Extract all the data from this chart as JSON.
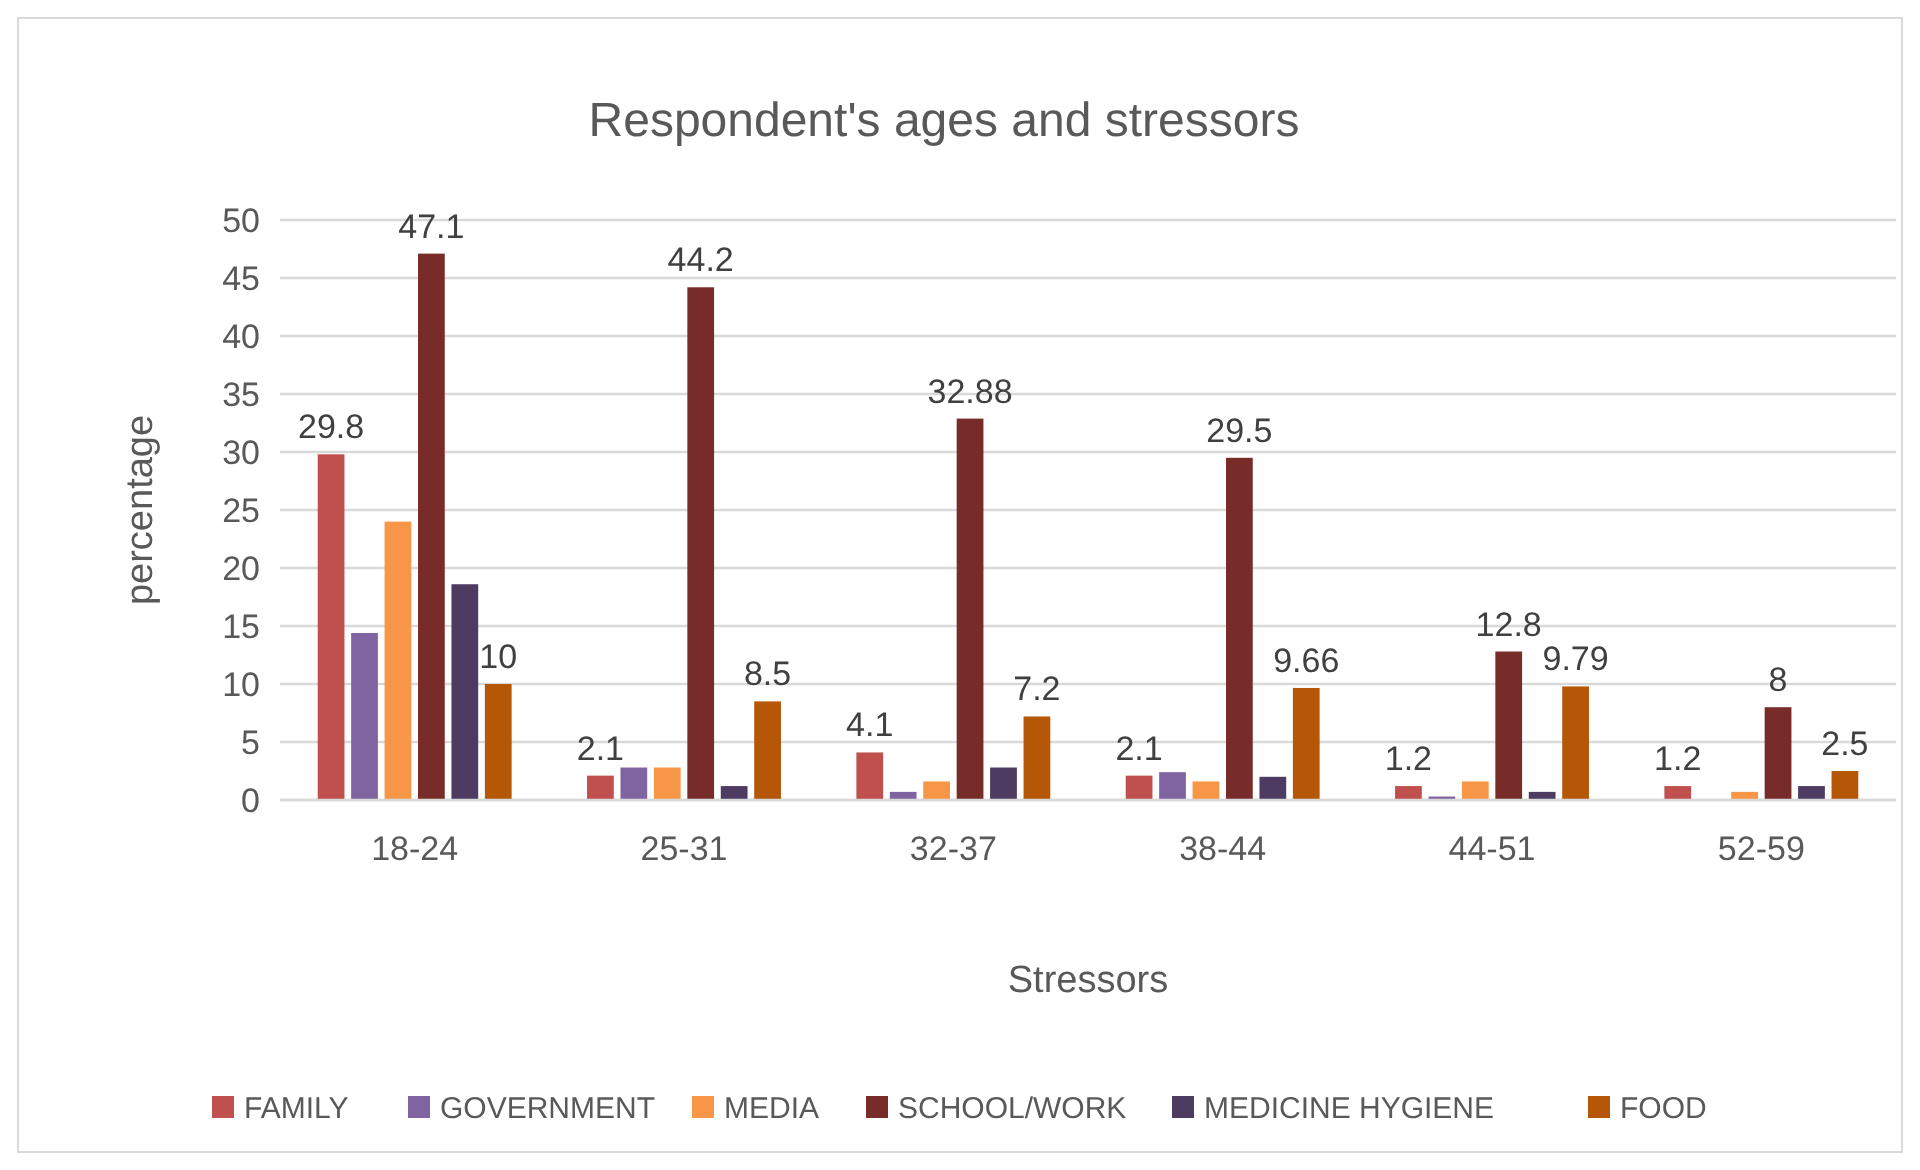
{
  "chart_data": {
    "type": "bar",
    "title": "Respondent's ages and stressors",
    "xlabel": "Stressors",
    "ylabel": "percentage",
    "categories": [
      "18-24",
      "25-31",
      "32-37",
      "38-44",
      "44-51",
      "52-59"
    ],
    "series": [
      {
        "name": "FAMILY",
        "color": "#c0504d",
        "values": [
          29.8,
          2.1,
          4.1,
          2.1,
          1.2,
          1.2
        ],
        "value_labels": [
          "29.8",
          "2.1",
          "4.1",
          "2.1",
          "1.2",
          "1.2"
        ]
      },
      {
        "name": "GOVERNMENT",
        "color": "#8064a2",
        "values": [
          14.4,
          2.8,
          0.7,
          2.4,
          0.3,
          0
        ]
      },
      {
        "name": "MEDIA",
        "color": "#f79646",
        "values": [
          24,
          2.8,
          1.6,
          1.6,
          1.6,
          0.7
        ]
      },
      {
        "name": "SCHOOL/WORK",
        "color": "#772c2a",
        "values": [
          47.1,
          44.2,
          32.88,
          29.5,
          12.8,
          8
        ],
        "value_labels": [
          "47.1",
          "44.2",
          "32.88",
          "29.5",
          "12.8",
          "8"
        ]
      },
      {
        "name": "MEDICINE HYGIENE",
        "color": "#4d3b62",
        "values": [
          18.6,
          1.2,
          2.8,
          2,
          0.7,
          1.2
        ]
      },
      {
        "name": "FOOD",
        "color": "#b65708",
        "values": [
          10,
          8.5,
          7.2,
          9.66,
          9.79,
          2.5
        ],
        "value_labels": [
          "10",
          "8.5",
          "7.2",
          "9.66",
          "9.79",
          "2.5"
        ]
      }
    ],
    "ylim": [
      0,
      50
    ],
    "yticks": [
      0,
      5,
      10,
      15,
      20,
      25,
      30,
      35,
      40,
      45,
      50
    ],
    "grid": "y",
    "legend": "bottom"
  }
}
